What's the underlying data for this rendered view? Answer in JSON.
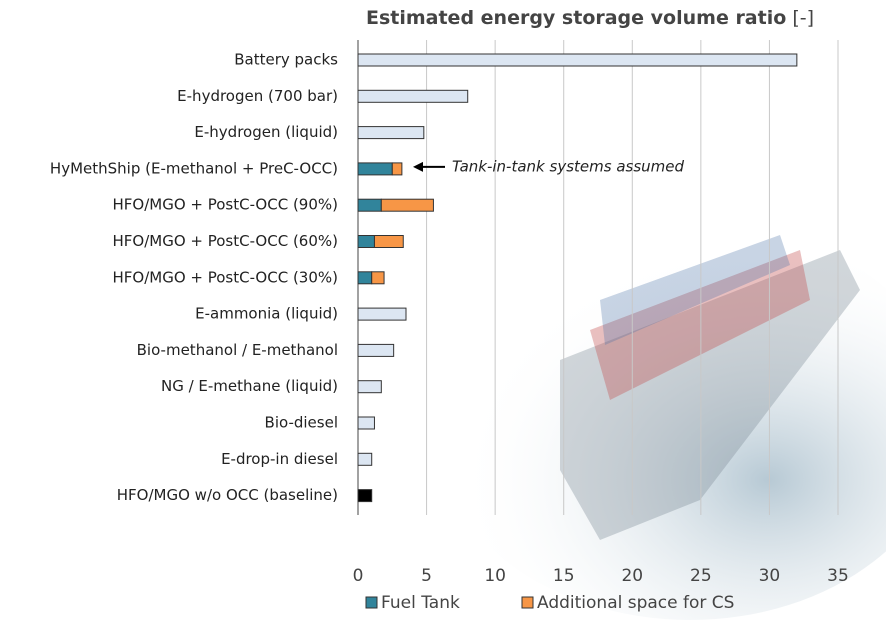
{
  "chart_data": {
    "type": "stacked-barh",
    "title": "Estimated energy storage volume ratio",
    "title_unit": "[-]",
    "categories": [
      "Battery packs",
      "E-hydrogen (700 bar)",
      "E-hydrogen (liquid)",
      "HyMethShip (E-methanol + PreC-OCC)",
      "HFO/MGO + PostC-OCC (90%)",
      "HFO/MGO + PostC-OCC (60%)",
      "HFO/MGO + PostC-OCC (30%)",
      "E-ammonia (liquid)",
      "Bio-methanol / E-methanol",
      "NG / E-methane (liquid)",
      "Bio-diesel",
      "E-drop-in diesel",
      "HFO/MGO w/o OCC (baseline)"
    ],
    "series": [
      {
        "name": "Fuel Tank",
        "color": "#31849b",
        "point_colors": [
          "#dce6f2",
          "#dce6f2",
          "#dce6f2",
          "#31849b",
          "#31849b",
          "#31849b",
          "#31849b",
          "#dce6f2",
          "#dce6f2",
          "#dce6f2",
          "#dce6f2",
          "#dce6f2",
          "#000000"
        ],
        "values": [
          32,
          8,
          4.8,
          2.5,
          1.7,
          1.2,
          1.0,
          3.5,
          2.6,
          1.7,
          1.2,
          1.0,
          1.0
        ]
      },
      {
        "name": "Additional space for CS",
        "color": "#f79646",
        "values": [
          null,
          null,
          null,
          0.7,
          3.8,
          2.1,
          0.9,
          null,
          null,
          null,
          null,
          null,
          null
        ]
      }
    ],
    "annotation": "Tank-in-tank systems assumed",
    "xlim": [
      0,
      35
    ],
    "xticks": [
      0,
      5,
      10,
      15,
      20,
      25,
      30,
      35
    ],
    "grid": true,
    "legend": "bottom"
  }
}
